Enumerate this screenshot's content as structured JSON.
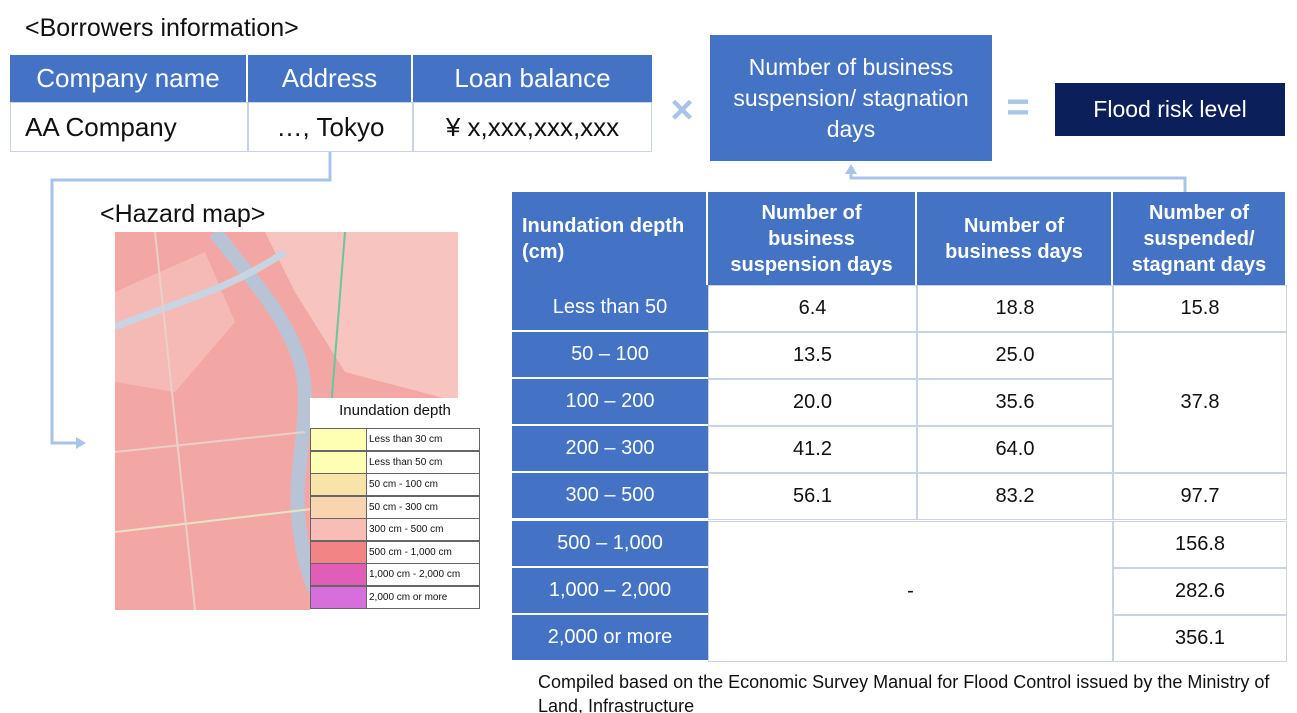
{
  "borrowers": {
    "title": "<Borrowers information>",
    "headers": [
      "Company name",
      "Address",
      "Loan balance"
    ],
    "row": [
      "AA Company",
      "…, Tokyo",
      "¥ x,xxx,xxx,xxx"
    ]
  },
  "formula": {
    "times": "×",
    "days": "Number of business suspension/ stagnation days",
    "equals": "=",
    "result": "Flood risk level"
  },
  "hazard": {
    "title": "<Hazard map>",
    "legend_title": "Inundation depth",
    "legend": [
      "Less than 30 cm",
      "Less than 50 cm",
      "50 cm - 100 cm",
      "50 cm - 300 cm",
      "300 cm - 500 cm",
      "500 cm - 1,000 cm",
      "1,000 cm - 2,000 cm",
      "2,000 cm or more"
    ]
  },
  "table": {
    "headers": [
      "Inundation depth (cm)",
      "Number of business suspension days",
      "Number of business days",
      "Number of suspended/ stagnant days"
    ],
    "rows": [
      [
        "Less than 50",
        "6.4",
        "18.8",
        "15.8"
      ],
      [
        "50 – 100",
        "13.5",
        "25.0",
        "37.8"
      ],
      [
        "100 – 200",
        "20.0",
        "35.6"
      ],
      [
        "200 – 300",
        "41.2",
        "64.0"
      ],
      [
        "300 – 500",
        "56.1",
        "83.2",
        "97.7"
      ],
      [
        "500 – 1,000",
        "-",
        "156.8"
      ],
      [
        "1,000 – 2,000",
        "282.6"
      ],
      [
        "2,000 or more",
        "356.1"
      ]
    ]
  },
  "footnote": "Compiled based on the Economic Survey Manual for Flood Control issued by the Ministry of Land, Infrastructure"
}
